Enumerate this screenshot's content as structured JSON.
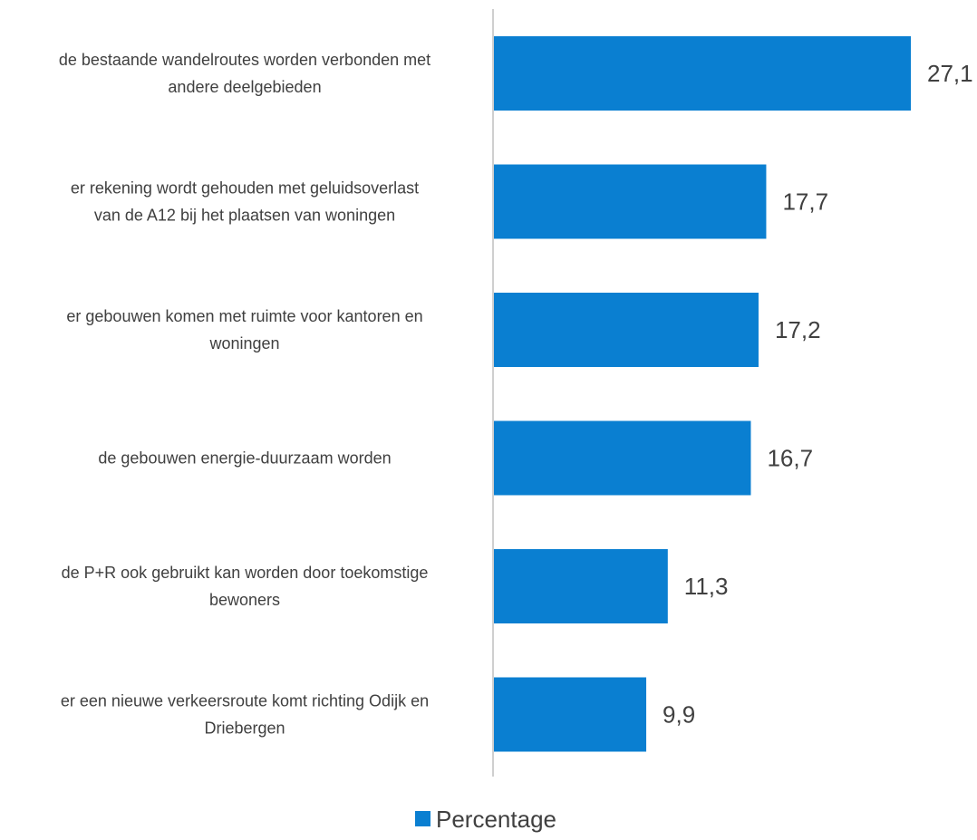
{
  "chart_data": {
    "type": "bar",
    "orientation": "horizontal",
    "categories": [
      [
        "de bestaande wandelroutes worden verbonden met",
        "andere deelgebieden"
      ],
      [
        "er rekening wordt gehouden met geluidsoverlast",
        "van de A12 bij het plaatsen van woningen"
      ],
      [
        "er gebouwen komen met ruimte voor kantoren en",
        "woningen"
      ],
      [
        "de gebouwen energie-duurzaam worden"
      ],
      [
        "de P+R ook gebruikt kan worden door toekomstige",
        "bewoners"
      ],
      [
        "er een nieuwe verkeersroute komt richting Odijk en",
        "Driebergen"
      ]
    ],
    "series": [
      {
        "name": "Percentage",
        "values": [
          27.1,
          17.7,
          17.2,
          16.7,
          11.3,
          9.9
        ],
        "labels": [
          "27,1",
          "17,7",
          "17,2",
          "16,7",
          "11,3",
          "9,9"
        ],
        "color": "#0a7fd1"
      }
    ],
    "xlim": [
      0,
      27.1
    ],
    "grid": false,
    "legend_position": "bottom"
  },
  "colors": {
    "bar": "#0a7fd1",
    "axis": "#bfbfbf",
    "text": "#404040"
  }
}
